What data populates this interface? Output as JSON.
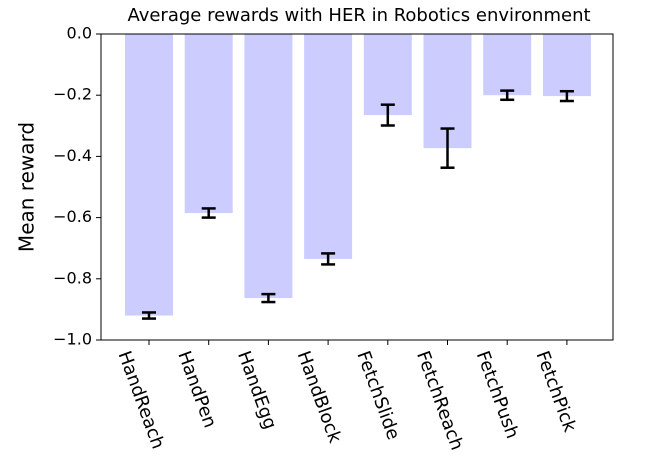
{
  "chart_data": {
    "type": "bar",
    "title": "Average rewards with HER in Robotics environment",
    "y_label": "Mean reward",
    "categories": [
      "HandReach",
      "HandPen",
      "HandEgg",
      "HandBlock",
      "FetchSlide",
      "FetchReach",
      "FetchPush",
      "FetchPick"
    ],
    "values": [
      -0.92,
      -0.585,
      -0.863,
      -0.735,
      -0.265,
      -0.373,
      -0.2,
      -0.203
    ],
    "errors": [
      0.01,
      0.015,
      0.013,
      0.018,
      0.034,
      0.064,
      0.015,
      0.016
    ],
    "color": "#ccccff",
    "error_color": "#000000",
    "ylim": [
      -1.0,
      0.0
    ],
    "yticks": [
      {
        "value": -1.0,
        "label": "−1.0"
      },
      {
        "value": -0.8,
        "label": "−0.8"
      },
      {
        "value": -0.6,
        "label": "−0.6"
      },
      {
        "value": -0.4,
        "label": "−0.4"
      },
      {
        "value": -0.2,
        "label": "−0.2"
      },
      {
        "value": 0.0,
        "label": "0.0"
      }
    ]
  }
}
